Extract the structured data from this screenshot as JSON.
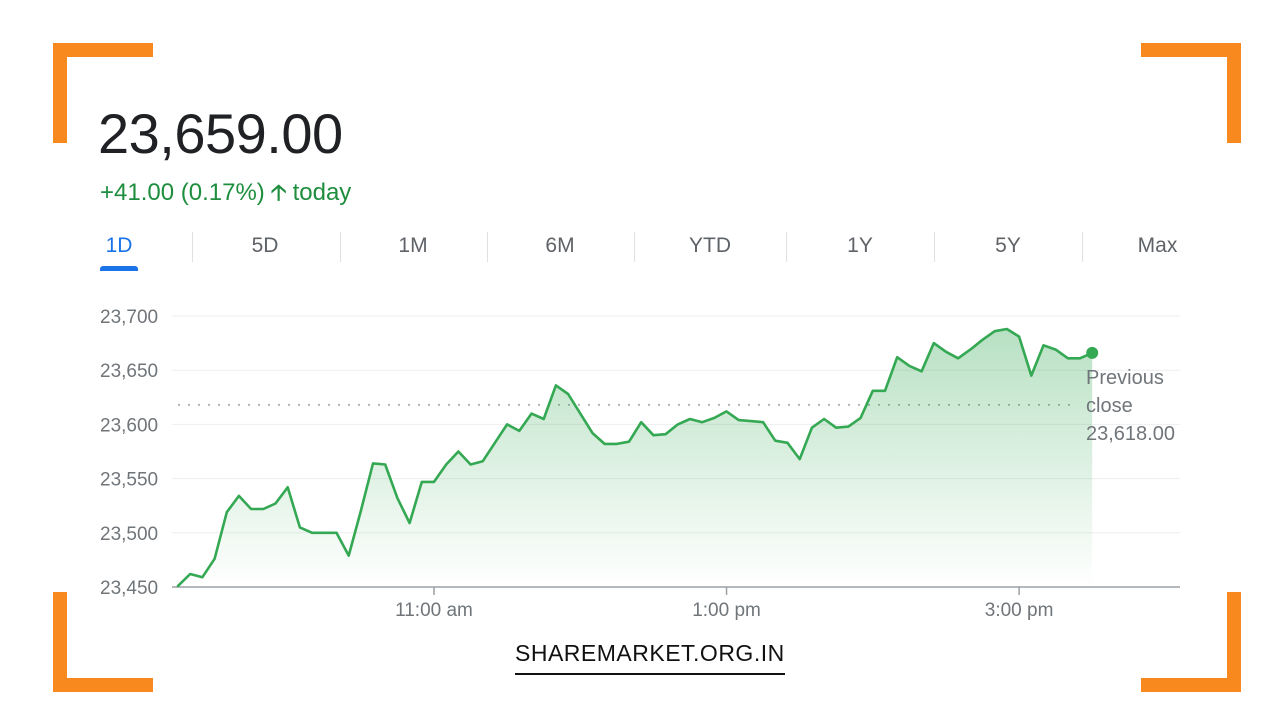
{
  "header": {
    "price": "23,659.00",
    "change": "+41.00 (0.17%)",
    "arrow_icon": "arrow-up-icon",
    "period": "today"
  },
  "tabs": [
    "1D",
    "5D",
    "1M",
    "6M",
    "YTD",
    "1Y",
    "5Y",
    "Max"
  ],
  "active_tab": "1D",
  "footer": {
    "site": "SHAREMARKET.ORG.IN"
  },
  "colors": {
    "accent": "#f7891f",
    "line": "#34a853",
    "tab_active": "#1a73e8",
    "change": "#1e8e3e"
  },
  "chart_data": {
    "type": "area",
    "ylim": [
      23450,
      23700
    ],
    "y_ticks": [
      "23,700",
      "23,650",
      "23,600",
      "23,550",
      "23,500",
      "23,450"
    ],
    "y_tick_values": [
      23700,
      23650,
      23600,
      23550,
      23500,
      23450
    ],
    "x_ticks": [
      "11:00 am",
      "1:00 pm",
      "3:00 pm"
    ],
    "x_tick_times": [
      "11:00",
      "13:00",
      "15:00"
    ],
    "xlim": [
      "09:15",
      "16:06"
    ],
    "previous_close": {
      "label_line1": "Previous",
      "label_line2": "close",
      "value_text": "23,618.00",
      "value": 23618
    },
    "grid": true,
    "series": [
      {
        "x": [
          "09:15",
          "09:20",
          "09:25",
          "09:30",
          "09:35",
          "09:40",
          "09:45",
          "09:50",
          "09:55",
          "10:00",
          "10:05",
          "10:10",
          "10:15",
          "10:20",
          "10:25",
          "10:30",
          "10:35",
          "10:40",
          "10:45",
          "10:50",
          "10:55",
          "11:00",
          "11:05",
          "11:10",
          "11:15",
          "11:20",
          "11:25",
          "11:30",
          "11:35",
          "11:40",
          "11:45",
          "11:50",
          "11:55",
          "12:00",
          "12:05",
          "12:10",
          "12:15",
          "12:20",
          "12:25",
          "12:30",
          "12:35",
          "12:40",
          "12:45",
          "12:50",
          "12:55",
          "13:00",
          "13:05",
          "13:10",
          "13:15",
          "13:20",
          "13:25",
          "13:30",
          "13:35",
          "13:40",
          "13:45",
          "13:50",
          "13:55",
          "14:00",
          "14:05",
          "14:10",
          "14:15",
          "14:20",
          "14:25",
          "14:30",
          "14:35",
          "14:40",
          "14:45",
          "14:50",
          "14:55",
          "15:00",
          "15:05",
          "15:10",
          "15:15",
          "15:20",
          "15:25",
          "15:30"
        ],
        "values": [
          23451,
          23462,
          23459,
          23476,
          23519,
          23534,
          23522,
          23522,
          23527,
          23542,
          23505,
          23500,
          23500,
          23500,
          23479,
          23520,
          23564,
          23563,
          23532,
          23509,
          23547,
          23547,
          23563,
          23575,
          23563,
          23566,
          23583,
          23600,
          23594,
          23610,
          23605,
          23636,
          23628,
          23610,
          23592,
          23582,
          23582,
          23584,
          23602,
          23590,
          23591,
          23600,
          23605,
          23602,
          23606,
          23612,
          23604,
          23603,
          23602,
          23585,
          23583,
          23568,
          23597,
          23605,
          23597,
          23598,
          23606,
          23631,
          23631,
          23662,
          23654,
          23649,
          23675,
          23667,
          23661,
          23669,
          23678,
          23686,
          23688,
          23681,
          23645,
          23673,
          23669,
          23661,
          23661,
          23666
        ]
      }
    ]
  }
}
